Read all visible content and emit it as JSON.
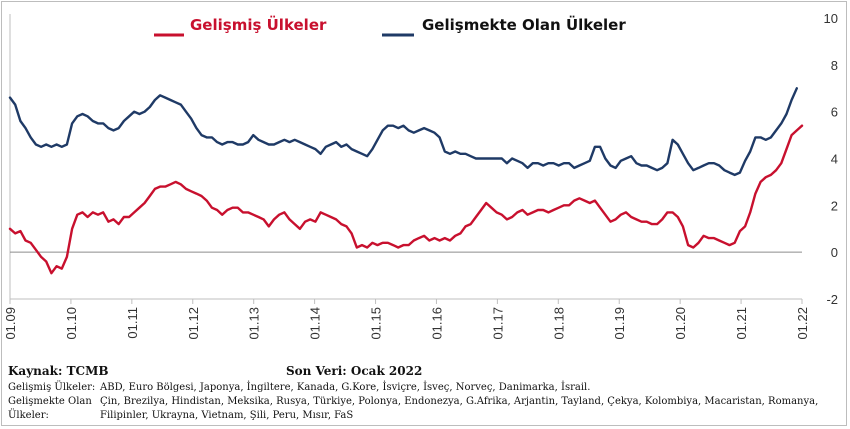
{
  "chart_data": {
    "type": "line",
    "title": "",
    "xlabel": "",
    "ylabel": "",
    "ylim": [
      -2,
      10
    ],
    "yticks": [
      -2,
      0,
      2,
      4,
      6,
      8,
      10
    ],
    "x_tick_labels": [
      "01.09",
      "01.10",
      "01.11",
      "01.12",
      "01.13",
      "01.14",
      "01.15",
      "01.16",
      "01.17",
      "01.18",
      "01.19",
      "01.20",
      "01.21",
      "01.22"
    ],
    "x_start": "2009-01",
    "x_end": "2022-01",
    "legend_placement": "top",
    "grid": false,
    "series": [
      {
        "name": "Gelişmiş Ülkeler",
        "color": "#c8102e",
        "values": [
          1.0,
          0.8,
          0.9,
          0.5,
          0.4,
          0.1,
          -0.2,
          -0.4,
          -0.9,
          -0.6,
          -0.7,
          -0.2,
          1.0,
          1.6,
          1.7,
          1.5,
          1.7,
          1.6,
          1.7,
          1.3,
          1.4,
          1.2,
          1.5,
          1.5,
          1.7,
          1.9,
          2.1,
          2.4,
          2.7,
          2.8,
          2.8,
          2.9,
          3.0,
          2.9,
          2.7,
          2.6,
          2.5,
          2.4,
          2.2,
          1.9,
          1.8,
          1.6,
          1.8,
          1.9,
          1.9,
          1.7,
          1.7,
          1.6,
          1.5,
          1.4,
          1.1,
          1.4,
          1.6,
          1.7,
          1.4,
          1.2,
          1.0,
          1.3,
          1.4,
          1.3,
          1.7,
          1.6,
          1.5,
          1.4,
          1.2,
          1.1,
          0.8,
          0.2,
          0.3,
          0.2,
          0.4,
          0.3,
          0.4,
          0.4,
          0.3,
          0.2,
          0.3,
          0.3,
          0.5,
          0.6,
          0.7,
          0.5,
          0.6,
          0.5,
          0.6,
          0.5,
          0.7,
          0.8,
          1.1,
          1.2,
          1.5,
          1.8,
          2.1,
          1.9,
          1.7,
          1.6,
          1.4,
          1.5,
          1.7,
          1.8,
          1.6,
          1.7,
          1.8,
          1.8,
          1.7,
          1.8,
          1.9,
          2.0,
          2.0,
          2.2,
          2.3,
          2.2,
          2.1,
          2.2,
          1.9,
          1.6,
          1.3,
          1.4,
          1.6,
          1.7,
          1.5,
          1.4,
          1.3,
          1.3,
          1.2,
          1.2,
          1.4,
          1.7,
          1.7,
          1.5,
          1.1,
          0.3,
          0.2,
          0.4,
          0.7,
          0.6,
          0.6,
          0.5,
          0.4,
          0.3,
          0.4,
          0.9,
          1.1,
          1.7,
          2.5,
          3.0,
          3.2,
          3.3,
          3.5,
          3.8,
          4.4,
          5.0,
          5.2,
          5.4
        ]
      },
      {
        "name": "Gelişmekte Olan Ülkeler",
        "color": "#1f3a66",
        "values": [
          6.6,
          6.3,
          5.6,
          5.3,
          4.9,
          4.6,
          4.5,
          4.6,
          4.5,
          4.6,
          4.5,
          4.6,
          5.5,
          5.8,
          5.9,
          5.8,
          5.6,
          5.5,
          5.5,
          5.3,
          5.2,
          5.3,
          5.6,
          5.8,
          6.0,
          5.9,
          6.0,
          6.2,
          6.5,
          6.7,
          6.6,
          6.5,
          6.4,
          6.3,
          6.0,
          5.7,
          5.3,
          5.0,
          4.9,
          4.9,
          4.7,
          4.6,
          4.7,
          4.7,
          4.6,
          4.6,
          4.7,
          5.0,
          4.8,
          4.7,
          4.6,
          4.6,
          4.7,
          4.8,
          4.7,
          4.8,
          4.7,
          4.6,
          4.5,
          4.4,
          4.2,
          4.5,
          4.6,
          4.7,
          4.5,
          4.6,
          4.4,
          4.3,
          4.2,
          4.1,
          4.4,
          4.8,
          5.2,
          5.4,
          5.4,
          5.3,
          5.4,
          5.2,
          5.1,
          5.2,
          5.3,
          5.2,
          5.1,
          4.9,
          4.3,
          4.2,
          4.3,
          4.2,
          4.2,
          4.1,
          4.0,
          4.0,
          4.0,
          4.0,
          4.0,
          4.0,
          3.8,
          4.0,
          3.9,
          3.8,
          3.6,
          3.8,
          3.8,
          3.7,
          3.8,
          3.8,
          3.7,
          3.8,
          3.8,
          3.6,
          3.7,
          3.8,
          3.9,
          4.5,
          4.5,
          4.0,
          3.7,
          3.6,
          3.9,
          4.0,
          4.1,
          3.8,
          3.7,
          3.7,
          3.6,
          3.5,
          3.6,
          3.8,
          4.8,
          4.6,
          4.2,
          3.8,
          3.5,
          3.6,
          3.7,
          3.8,
          3.8,
          3.7,
          3.5,
          3.4,
          3.3,
          3.4,
          3.9,
          4.3,
          4.9,
          4.9,
          4.8,
          4.9,
          5.2,
          5.5,
          5.9,
          6.5,
          7.0
        ]
      }
    ]
  },
  "footer": {
    "source_label": "Kaynak: TCMB",
    "last_data_label": "Son Veri: Ocak 2022",
    "group1_label": "Gelişmiş Ülkeler:",
    "group1_countries": "ABD, Euro Bölgesi, Japonya, İngiltere, Kanada, G.Kore, İsviçre, İsveç, Norveç, Danimarka, İsrail.",
    "group2_label_line1": "Gelişmekte Olan",
    "group2_label_line2": "Ülkeler:",
    "group2_countries_line1": "Çin, Brezilya, Hindistan, Meksika, Rusya, Türkiye, Polonya, Endonezya, G.Afrika, Arjantin, Tayland, Çekya, Kolombiya, Macaristan, Romanya,",
    "group2_countries_line2": "Filipinler, Ukrayna, Vietnam, Şili, Peru, Mısır, FaS"
  }
}
